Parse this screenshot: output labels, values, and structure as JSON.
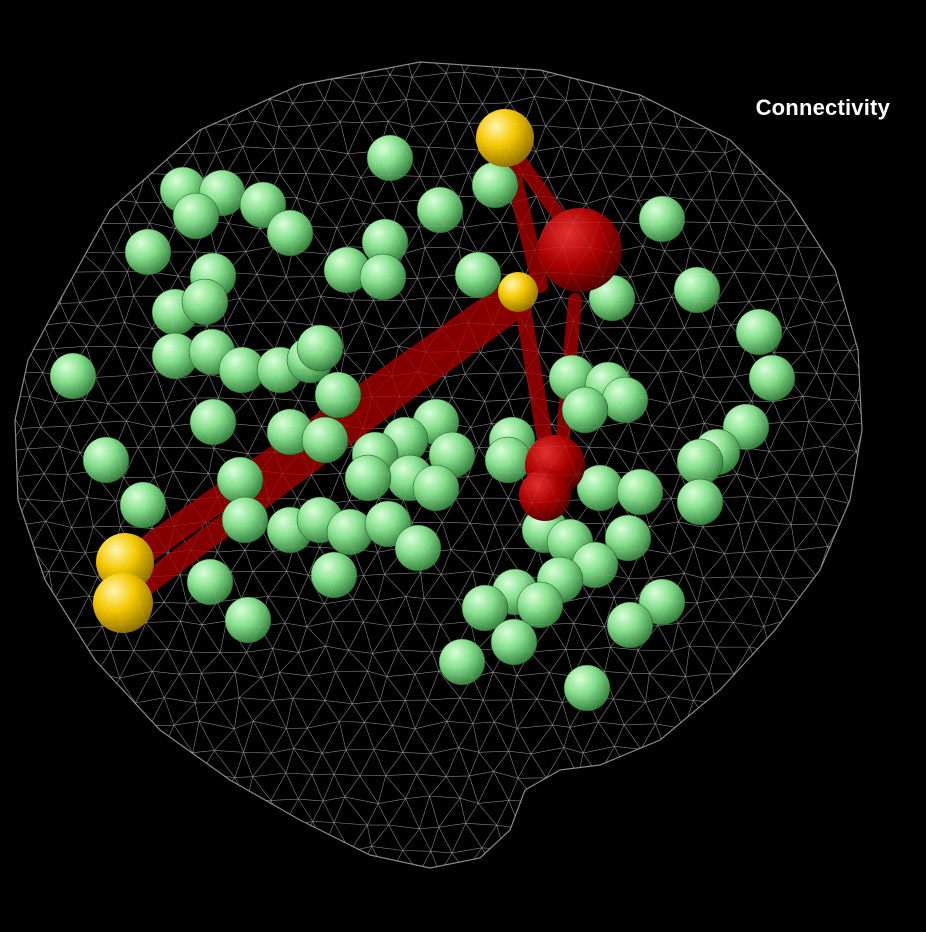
{
  "title": "Connectivity",
  "colors": {
    "background": "#000000",
    "mesh": "#d8d8d8",
    "node": "#7fe08a",
    "highlight_node": "#f2c300",
    "hub_node": "#c00000",
    "edge": "#9e0000"
  }
}
